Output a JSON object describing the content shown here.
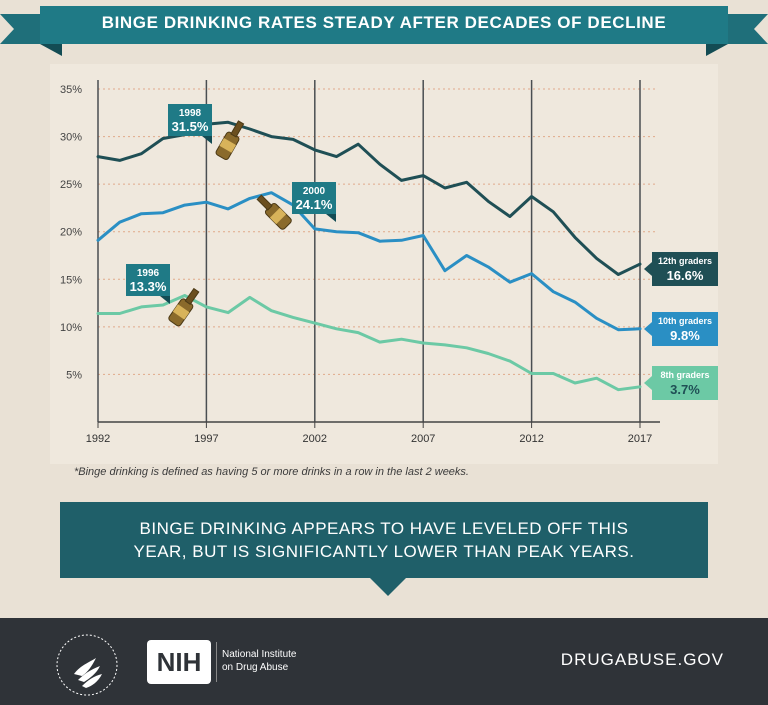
{
  "title": "BINGE DRINKING RATES STEADY AFTER DECADES OF DECLINE",
  "chart_data": {
    "type": "line",
    "x": [
      1992,
      1993,
      1994,
      1995,
      1996,
      1997,
      1998,
      1999,
      2000,
      2001,
      2002,
      2003,
      2004,
      2005,
      2006,
      2007,
      2008,
      2009,
      2010,
      2011,
      2012,
      2013,
      2014,
      2015,
      2016,
      2017
    ],
    "series": [
      {
        "name": "12th graders",
        "color": "#1f4f55",
        "values": [
          27.9,
          27.5,
          28.2,
          29.8,
          30.2,
          31.3,
          31.5,
          30.8,
          30.0,
          29.7,
          28.6,
          27.9,
          29.2,
          27.1,
          25.4,
          25.9,
          24.6,
          25.2,
          23.2,
          21.6,
          23.7,
          22.1,
          19.4,
          17.2,
          15.5,
          16.6
        ]
      },
      {
        "name": "10th graders",
        "color": "#2a8fc4",
        "values": [
          19.1,
          21.0,
          21.9,
          22.0,
          22.8,
          23.1,
          22.4,
          23.5,
          24.1,
          22.8,
          20.3,
          20.0,
          19.9,
          19.0,
          19.1,
          19.6,
          15.9,
          17.5,
          16.3,
          14.7,
          15.6,
          13.7,
          12.6,
          10.9,
          9.7,
          9.8
        ]
      },
      {
        "name": "8th graders",
        "color": "#6cc9a5",
        "values": [
          11.4,
          11.4,
          12.1,
          12.3,
          13.3,
          12.1,
          11.5,
          13.1,
          11.7,
          11.0,
          10.4,
          9.8,
          9.4,
          8.4,
          8.7,
          8.3,
          8.1,
          7.8,
          7.2,
          6.4,
          5.1,
          5.1,
          4.1,
          4.6,
          3.4,
          3.7
        ]
      }
    ],
    "y_ticks": [
      "35%",
      "30%",
      "25%",
      "20%",
      "15%",
      "10%",
      "5%"
    ],
    "y_tick_values": [
      35,
      30,
      25,
      20,
      15,
      10,
      5
    ],
    "x_tick_labels": [
      "1992",
      "1997",
      "2002",
      "2007",
      "2012",
      "2017"
    ],
    "x_tick_values": [
      1992,
      1997,
      2002,
      2007,
      2012,
      2017
    ],
    "ylim": [
      0,
      37
    ],
    "annotations": [
      {
        "year": "1998",
        "value": "31.5%",
        "x": 1998,
        "y": 31.5
      },
      {
        "year": "2000",
        "value": "24.1%",
        "x": 2000,
        "y": 24.1
      },
      {
        "year": "1996",
        "value": "13.3%",
        "x": 1996,
        "y": 13.3
      }
    ],
    "end_labels": [
      {
        "name": "12th graders",
        "value": "16.6%"
      },
      {
        "name": "10th graders",
        "value": "9.8%"
      },
      {
        "name": "8th graders",
        "value": "3.7%"
      }
    ]
  },
  "footnote": "*Binge drinking is defined as having 5 or more drinks in a row in the last 2 weeks.",
  "callout": {
    "line1": "BINGE DRINKING APPEARS TO HAVE LEVELED OFF THIS",
    "line2": "YEAR, BUT IS SIGNIFICANTLY LOWER THAN PEAK YEARS."
  },
  "footer": {
    "nih": "NIH",
    "institute_line1": "National Institute",
    "institute_line2": "on Drug Abuse",
    "website": "DRUGABUSE.GOV"
  },
  "colors": {
    "banner": "#1f6f7a",
    "banner_dark": "#134c54",
    "callout": "#1f5f69",
    "footer": "#2f3338",
    "grid": "#e0a98a"
  }
}
